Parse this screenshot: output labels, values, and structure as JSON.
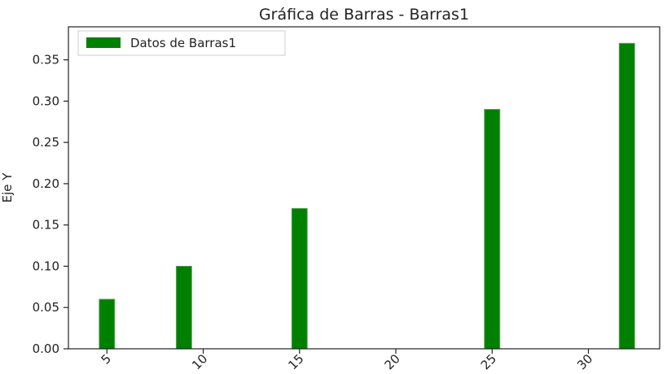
{
  "chart_data": {
    "type": "bar",
    "title": "Gráfica de Barras - Barras1",
    "xlabel": "",
    "ylabel": "Eje Y",
    "x": [
      5,
      9,
      15,
      25,
      32
    ],
    "series": [
      {
        "name": "Datos de Barras1",
        "values": [
          0.06,
          0.1,
          0.17,
          0.29,
          0.37
        ]
      }
    ],
    "bar_width": 0.8,
    "xlim": [
      3.0,
      33.7
    ],
    "ylim": [
      0.0,
      0.39
    ],
    "xticks": [
      5,
      10,
      15,
      20,
      25,
      30
    ],
    "yticks": [
      0.0,
      0.05,
      0.1,
      0.15,
      0.2,
      0.25,
      0.3,
      0.35
    ],
    "ytick_labels": [
      "0.00",
      "0.05",
      "0.10",
      "0.15",
      "0.20",
      "0.25",
      "0.30",
      "0.35"
    ],
    "xtick_rotation": 45,
    "legend_position": "top-left",
    "grid": false,
    "colors": {
      "bar": "#008000",
      "bar_edge": "#5aa05a",
      "axes": "#222222"
    }
  }
}
